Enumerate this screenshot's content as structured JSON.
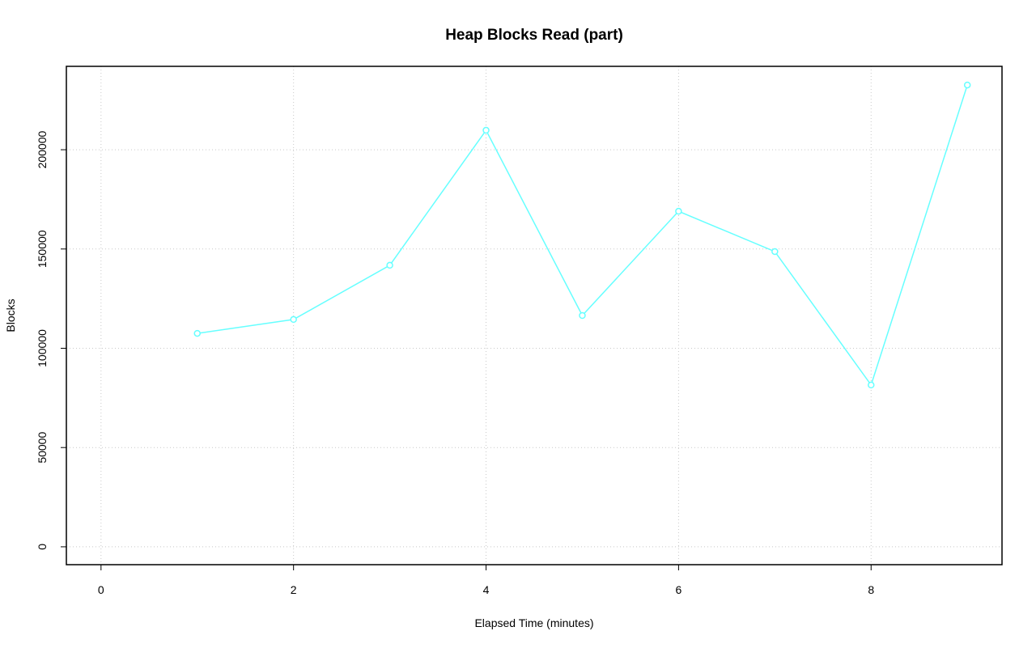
{
  "chart_data": {
    "type": "line",
    "title": "Heap Blocks Read (part)",
    "x_label": "Elapsed Time (minutes)",
    "y_label": "Blocks",
    "x": [
      1,
      2,
      3,
      4,
      5,
      6,
      7,
      8,
      9
    ],
    "series": [
      {
        "color": "#66ffff",
        "values": [
          107500,
          114500,
          141800,
          209800,
          116500,
          169000,
          148700,
          81500,
          232600
        ]
      }
    ],
    "xlim": [
      -0.36,
      9.36
    ],
    "xticks": [
      0,
      2,
      4,
      6,
      8
    ],
    "ylim": [
      -9000,
      242000
    ],
    "yticks": [
      0,
      50000,
      100000,
      150000,
      200000
    ],
    "grid": true
  }
}
